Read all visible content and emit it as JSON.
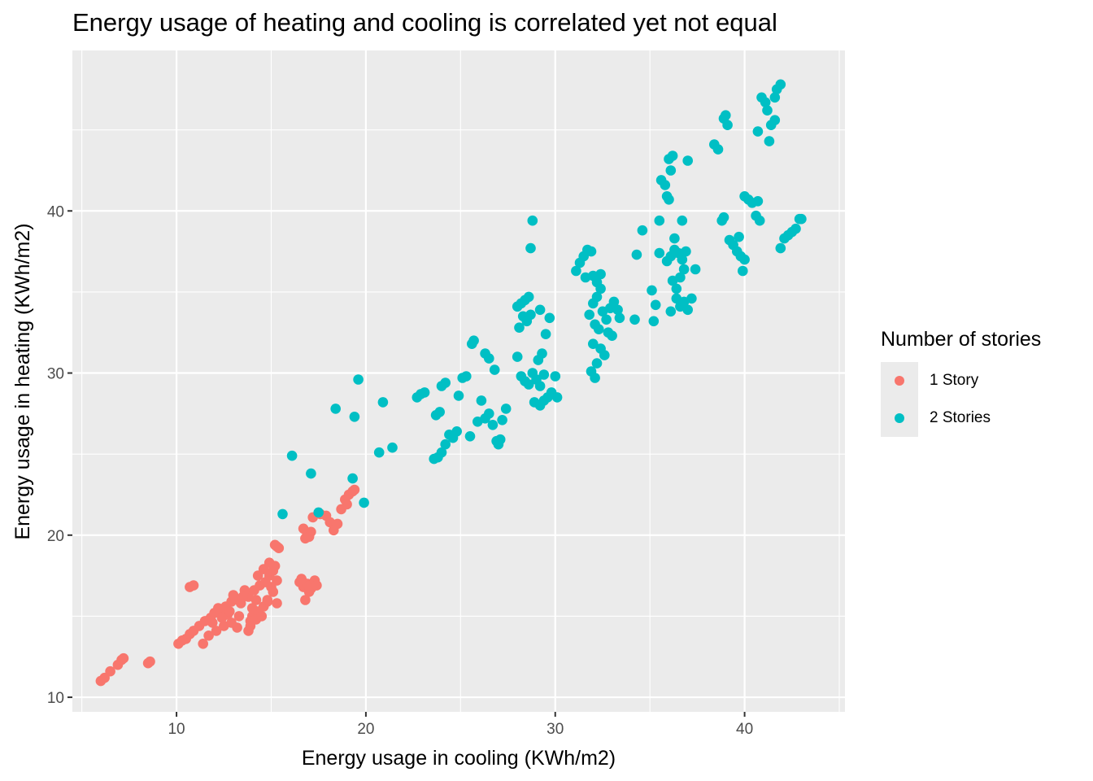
{
  "chart_data": {
    "type": "scatter",
    "title": "Energy usage of heating and cooling is correlated yet not equal",
    "xlabel": "Energy usage in cooling (KWh/m2)",
    "ylabel": "Energy usage in heating (KWh/m2)",
    "xlim": [
      4.5,
      45.3
    ],
    "ylim": [
      9.1,
      49.9
    ],
    "xticks": [
      10,
      20,
      30,
      40
    ],
    "yticks": [
      10,
      20,
      30,
      40
    ],
    "xtick_labels": [
      "10",
      "20",
      "30",
      "40"
    ],
    "ytick_labels": [
      "10",
      "20",
      "30",
      "40"
    ],
    "grid": true,
    "legend": {
      "title": "Number of stories",
      "position": "right"
    },
    "series": [
      {
        "name": "1 Story",
        "color": "#F8766D",
        "points": [
          [
            6.0,
            11.0
          ],
          [
            6.2,
            11.2
          ],
          [
            6.5,
            11.6
          ],
          [
            6.9,
            12.0
          ],
          [
            7.1,
            12.3
          ],
          [
            7.2,
            12.4
          ],
          [
            8.5,
            12.1
          ],
          [
            8.6,
            12.2
          ],
          [
            10.1,
            13.3
          ],
          [
            10.3,
            13.5
          ],
          [
            10.5,
            13.6
          ],
          [
            10.7,
            13.9
          ],
          [
            10.9,
            14.1
          ],
          [
            11.2,
            14.4
          ],
          [
            11.5,
            14.7
          ],
          [
            11.8,
            14.9
          ],
          [
            12.0,
            15.2
          ],
          [
            12.3,
            15.4
          ],
          [
            12.6,
            15.6
          ],
          [
            12.9,
            15.9
          ],
          [
            13.1,
            16.1
          ],
          [
            11.4,
            13.3
          ],
          [
            11.7,
            13.8
          ],
          [
            12.1,
            14.1
          ],
          [
            12.5,
            14.4
          ],
          [
            12.9,
            14.6
          ],
          [
            13.2,
            14.3
          ],
          [
            12.2,
            15.5
          ],
          [
            12.7,
            15.1
          ],
          [
            13.3,
            15.0
          ],
          [
            13.0,
            16.3
          ],
          [
            10.7,
            16.8
          ],
          [
            10.9,
            16.9
          ],
          [
            14.0,
            15.0
          ],
          [
            14.3,
            15.3
          ],
          [
            14.6,
            15.6
          ],
          [
            14.8,
            15.9
          ],
          [
            13.9,
            14.7
          ],
          [
            14.2,
            14.8
          ],
          [
            14.5,
            15.0
          ],
          [
            13.8,
            16.2
          ],
          [
            14.1,
            16.6
          ],
          [
            14.4,
            16.9
          ],
          [
            14.7,
            17.1
          ],
          [
            14.9,
            17.5
          ],
          [
            15.1,
            17.8
          ],
          [
            15.2,
            18.1
          ],
          [
            14.6,
            17.9
          ],
          [
            14.9,
            18.3
          ],
          [
            15.3,
            17.2
          ],
          [
            15.1,
            16.5
          ],
          [
            14.8,
            16.0
          ],
          [
            15.2,
            19.4
          ],
          [
            15.3,
            19.3
          ],
          [
            15.4,
            19.2
          ],
          [
            14.2,
            16.0
          ],
          [
            14.0,
            15.5
          ],
          [
            15.3,
            15.8
          ],
          [
            13.9,
            14.4
          ],
          [
            13.8,
            14.1
          ],
          [
            14.3,
            17.5
          ],
          [
            16.7,
            20.4
          ],
          [
            16.9,
            20.1
          ],
          [
            17.1,
            20.2
          ],
          [
            16.8,
            19.8
          ],
          [
            17.0,
            19.9
          ],
          [
            17.2,
            21.1
          ],
          [
            17.6,
            21.3
          ],
          [
            17.9,
            21.2
          ],
          [
            18.1,
            20.8
          ],
          [
            18.3,
            20.3
          ],
          [
            18.5,
            20.7
          ],
          [
            18.7,
            21.6
          ],
          [
            18.9,
            22.2
          ],
          [
            19.1,
            22.5
          ],
          [
            19.3,
            22.7
          ],
          [
            19.4,
            22.8
          ],
          [
            19.0,
            21.9
          ],
          [
            16.5,
            17.1
          ],
          [
            16.7,
            16.8
          ],
          [
            16.9,
            17.0
          ],
          [
            17.0,
            16.5
          ],
          [
            17.3,
            17.2
          ],
          [
            16.8,
            16.0
          ],
          [
            17.1,
            16.7
          ],
          [
            17.4,
            16.9
          ],
          [
            16.6,
            17.3
          ],
          [
            15.0,
            16.8
          ],
          [
            13.6,
            16.6
          ],
          [
            13.4,
            15.8
          ],
          [
            12.8,
            15.3
          ],
          [
            11.9,
            14.6
          ],
          [
            12.4,
            14.9
          ],
          [
            13.5,
            16.2
          ]
        ]
      },
      {
        "name": "2 Stories",
        "color": "#00BFC4",
        "points": [
          [
            15.6,
            21.3
          ],
          [
            16.1,
            24.9
          ],
          [
            17.1,
            23.8
          ],
          [
            17.5,
            21.4
          ],
          [
            18.4,
            27.8
          ],
          [
            19.3,
            23.5
          ],
          [
            19.4,
            27.3
          ],
          [
            19.6,
            29.6
          ],
          [
            19.9,
            22.0
          ],
          [
            20.7,
            25.1
          ],
          [
            20.9,
            28.2
          ],
          [
            21.4,
            25.4
          ],
          [
            22.7,
            28.5
          ],
          [
            22.9,
            28.7
          ],
          [
            23.1,
            28.8
          ],
          [
            23.6,
            24.7
          ],
          [
            23.8,
            24.8
          ],
          [
            24.0,
            25.1
          ],
          [
            24.2,
            25.6
          ],
          [
            23.7,
            27.4
          ],
          [
            23.9,
            27.6
          ],
          [
            24.0,
            29.2
          ],
          [
            24.2,
            29.4
          ],
          [
            24.4,
            26.2
          ],
          [
            24.6,
            26.0
          ],
          [
            24.8,
            26.4
          ],
          [
            24.9,
            28.6
          ],
          [
            25.1,
            29.7
          ],
          [
            25.3,
            29.8
          ],
          [
            25.5,
            26.1
          ],
          [
            25.6,
            31.8
          ],
          [
            25.7,
            32.0
          ],
          [
            25.9,
            27.0
          ],
          [
            26.1,
            28.3
          ],
          [
            26.3,
            27.2
          ],
          [
            26.5,
            27.5
          ],
          [
            26.7,
            26.8
          ],
          [
            26.9,
            25.8
          ],
          [
            27.0,
            25.6
          ],
          [
            27.1,
            25.9
          ],
          [
            27.2,
            27.1
          ],
          [
            27.4,
            27.8
          ],
          [
            26.3,
            31.2
          ],
          [
            26.5,
            30.9
          ],
          [
            26.8,
            30.2
          ],
          [
            28.0,
            34.1
          ],
          [
            28.2,
            34.3
          ],
          [
            28.4,
            34.5
          ],
          [
            28.6,
            34.7
          ],
          [
            28.1,
            32.8
          ],
          [
            28.3,
            33.5
          ],
          [
            28.5,
            33.2
          ],
          [
            28.7,
            33.6
          ],
          [
            28.2,
            29.8
          ],
          [
            28.4,
            29.5
          ],
          [
            28.6,
            29.3
          ],
          [
            28.8,
            30.0
          ],
          [
            29.0,
            29.6
          ],
          [
            29.2,
            29.2
          ],
          [
            29.4,
            29.9
          ],
          [
            29.6,
            28.5
          ],
          [
            29.8,
            28.8
          ],
          [
            30.0,
            29.8
          ],
          [
            29.2,
            28.0
          ],
          [
            29.4,
            28.3
          ],
          [
            29.1,
            30.8
          ],
          [
            29.3,
            31.2
          ],
          [
            29.5,
            32.4
          ],
          [
            29.7,
            33.4
          ],
          [
            29.2,
            33.9
          ],
          [
            28.7,
            37.7
          ],
          [
            28.8,
            39.4
          ],
          [
            28.0,
            31.0
          ],
          [
            28.9,
            28.2
          ],
          [
            30.1,
            28.5
          ],
          [
            31.1,
            36.3
          ],
          [
            31.3,
            36.8
          ],
          [
            31.5,
            37.2
          ],
          [
            31.7,
            37.6
          ],
          [
            31.9,
            37.5
          ],
          [
            32.0,
            36.0
          ],
          [
            32.2,
            35.6
          ],
          [
            32.4,
            36.1
          ],
          [
            31.6,
            35.9
          ],
          [
            31.8,
            33.6
          ],
          [
            32.0,
            34.3
          ],
          [
            32.2,
            34.7
          ],
          [
            32.4,
            35.2
          ],
          [
            32.1,
            33.0
          ],
          [
            32.3,
            32.7
          ],
          [
            32.5,
            33.8
          ],
          [
            32.7,
            33.3
          ],
          [
            32.9,
            34.0
          ],
          [
            33.1,
            34.4
          ],
          [
            33.3,
            33.9
          ],
          [
            32.0,
            31.8
          ],
          [
            32.2,
            30.6
          ],
          [
            32.4,
            31.5
          ],
          [
            32.6,
            31.1
          ],
          [
            31.9,
            30.1
          ],
          [
            32.1,
            29.7
          ],
          [
            32.8,
            32.5
          ],
          [
            33.0,
            32.3
          ],
          [
            33.4,
            33.4
          ],
          [
            34.2,
            33.3
          ],
          [
            34.3,
            37.3
          ],
          [
            34.6,
            38.8
          ],
          [
            35.1,
            35.1
          ],
          [
            35.2,
            33.2
          ],
          [
            35.3,
            34.2
          ],
          [
            35.5,
            37.4
          ],
          [
            35.5,
            39.4
          ],
          [
            35.6,
            41.9
          ],
          [
            35.8,
            41.6
          ],
          [
            35.9,
            40.9
          ],
          [
            36.0,
            40.7
          ],
          [
            36.1,
            42.5
          ],
          [
            36.0,
            43.2
          ],
          [
            36.2,
            43.4
          ],
          [
            35.9,
            36.9
          ],
          [
            36.1,
            37.2
          ],
          [
            36.3,
            37.6
          ],
          [
            36.5,
            37.4
          ],
          [
            36.7,
            37.0
          ],
          [
            36.9,
            37.5
          ],
          [
            36.2,
            35.7
          ],
          [
            36.4,
            35.2
          ],
          [
            36.6,
            35.9
          ],
          [
            36.8,
            36.4
          ],
          [
            36.4,
            34.6
          ],
          [
            36.6,
            34.1
          ],
          [
            36.8,
            34.4
          ],
          [
            37.0,
            33.9
          ],
          [
            37.2,
            34.6
          ],
          [
            37.4,
            36.4
          ],
          [
            36.1,
            33.8
          ],
          [
            36.3,
            38.3
          ],
          [
            36.7,
            39.4
          ],
          [
            37.0,
            43.1
          ],
          [
            38.4,
            44.1
          ],
          [
            38.6,
            43.8
          ],
          [
            38.8,
            39.4
          ],
          [
            38.9,
            39.6
          ],
          [
            38.9,
            45.7
          ],
          [
            39.0,
            45.9
          ],
          [
            39.1,
            45.3
          ],
          [
            39.2,
            38.2
          ],
          [
            39.4,
            37.9
          ],
          [
            39.6,
            37.5
          ],
          [
            39.8,
            37.2
          ],
          [
            40.0,
            37.0
          ],
          [
            39.9,
            36.3
          ],
          [
            40.0,
            40.9
          ],
          [
            40.2,
            40.7
          ],
          [
            40.4,
            40.5
          ],
          [
            40.6,
            39.7
          ],
          [
            40.8,
            39.4
          ],
          [
            40.7,
            40.6
          ],
          [
            39.7,
            38.4
          ],
          [
            40.7,
            44.9
          ],
          [
            40.9,
            47.0
          ],
          [
            41.1,
            46.7
          ],
          [
            41.2,
            46.2
          ],
          [
            41.3,
            44.3
          ],
          [
            41.4,
            45.3
          ],
          [
            41.6,
            45.6
          ],
          [
            41.6,
            47.0
          ],
          [
            41.7,
            47.5
          ],
          [
            41.9,
            47.8
          ],
          [
            41.9,
            37.7
          ],
          [
            42.1,
            38.3
          ],
          [
            42.3,
            38.5
          ],
          [
            42.5,
            38.7
          ],
          [
            42.7,
            38.9
          ],
          [
            42.9,
            39.5
          ],
          [
            43.0,
            39.5
          ]
        ]
      }
    ]
  }
}
